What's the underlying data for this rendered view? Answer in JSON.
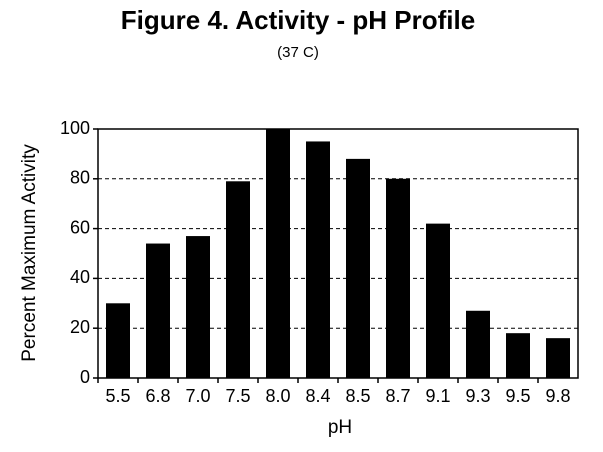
{
  "chart_data": {
    "type": "bar",
    "title": "Figure 4.  Activity - pH Profile",
    "subtitle": "(37 C)",
    "x_label": "pH",
    "y_label": "Percent Maximum Activity",
    "categories": [
      "5.5",
      "6.8",
      "7.0",
      "7.5",
      "8.0",
      "8.4",
      "8.5",
      "8.7",
      "9.1",
      "9.3",
      "9.5",
      "9.8"
    ],
    "values": [
      30,
      54,
      57,
      79,
      100,
      95,
      88,
      80,
      62,
      27,
      18,
      16
    ],
    "color": "#000000",
    "ylim": [
      0,
      100
    ],
    "yticks": [
      0,
      20,
      40,
      60,
      80,
      100
    ],
    "grid": true
  }
}
